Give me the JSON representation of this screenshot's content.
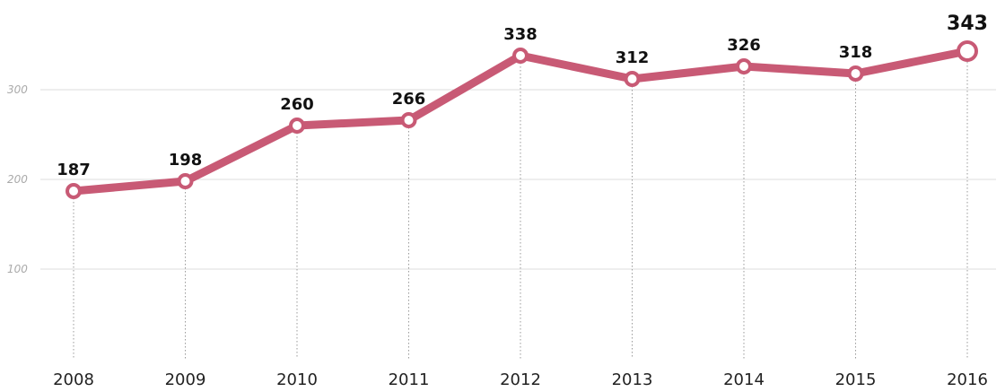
{
  "chart_data": {
    "type": "line",
    "title": "",
    "xlabel": "",
    "ylabel": "",
    "categories": [
      "2008",
      "2009",
      "2010",
      "2011",
      "2012",
      "2013",
      "2014",
      "2015",
      "2016"
    ],
    "series": [
      {
        "values": [
          187,
          198,
          260,
          266,
          338,
          312,
          326,
          318,
          343
        ]
      }
    ],
    "data_labels": [
      "187",
      "198",
      "260",
      "266",
      "338",
      "312",
      "326",
      "318",
      "343"
    ],
    "y_ticks": [
      100,
      200,
      300
    ],
    "y_tick_labels": [
      "100",
      "200",
      "300"
    ],
    "ylim": [
      0,
      400
    ],
    "grid": "horizontal",
    "drop_lines": true,
    "highlight_last_point": true,
    "legend": "none",
    "colors": {
      "line": "#c85a75",
      "highlight_label": "#c85a75",
      "grid": "#dcdcdc"
    }
  }
}
